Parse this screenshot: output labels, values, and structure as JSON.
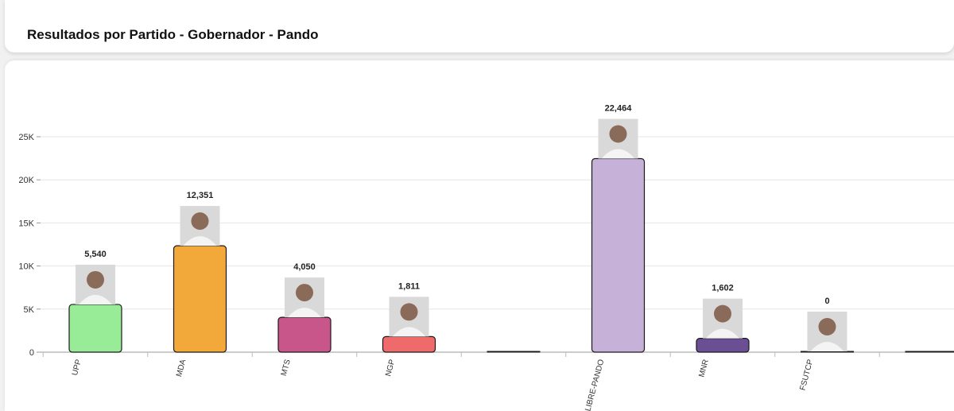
{
  "header": {
    "title": "Resultados por Partido - Gobernador - Pando"
  },
  "chart_data": {
    "type": "bar",
    "title": "",
    "xlabel": "",
    "ylabel": "",
    "ylim": [
      0,
      25000
    ],
    "y_ticks": [
      {
        "value": 0,
        "label": "0"
      },
      {
        "value": 5000,
        "label": "5K"
      },
      {
        "value": 10000,
        "label": "10K"
      },
      {
        "value": 15000,
        "label": "15K"
      },
      {
        "value": 20000,
        "label": "20K"
      },
      {
        "value": 25000,
        "label": "25K"
      }
    ],
    "grid": true,
    "categories": [
      "UPP",
      "MDA",
      "MTS",
      "NGP",
      "",
      "LIBRE-PANDO",
      "MNR",
      "FSUTCP",
      ""
    ],
    "values": [
      5540,
      12351,
      4050,
      1811,
      0,
      22464,
      1602,
      0,
      0
    ],
    "value_labels": [
      "5,540",
      "12,351",
      "4,050",
      "1,811",
      "",
      "22,464",
      "1,602",
      "0",
      ""
    ],
    "has_photo": [
      true,
      true,
      true,
      true,
      false,
      true,
      true,
      true,
      false
    ],
    "colors": [
      "#98ec98",
      "#f3a93a",
      "#c9568a",
      "#ef6b6b",
      "#dddddd",
      "#c6b1d9",
      "#6a4f94",
      "#9fc46a",
      "#dddddd"
    ],
    "photo_bg": "#d9d9d9",
    "bar_stroke": "#1a1a1a"
  }
}
